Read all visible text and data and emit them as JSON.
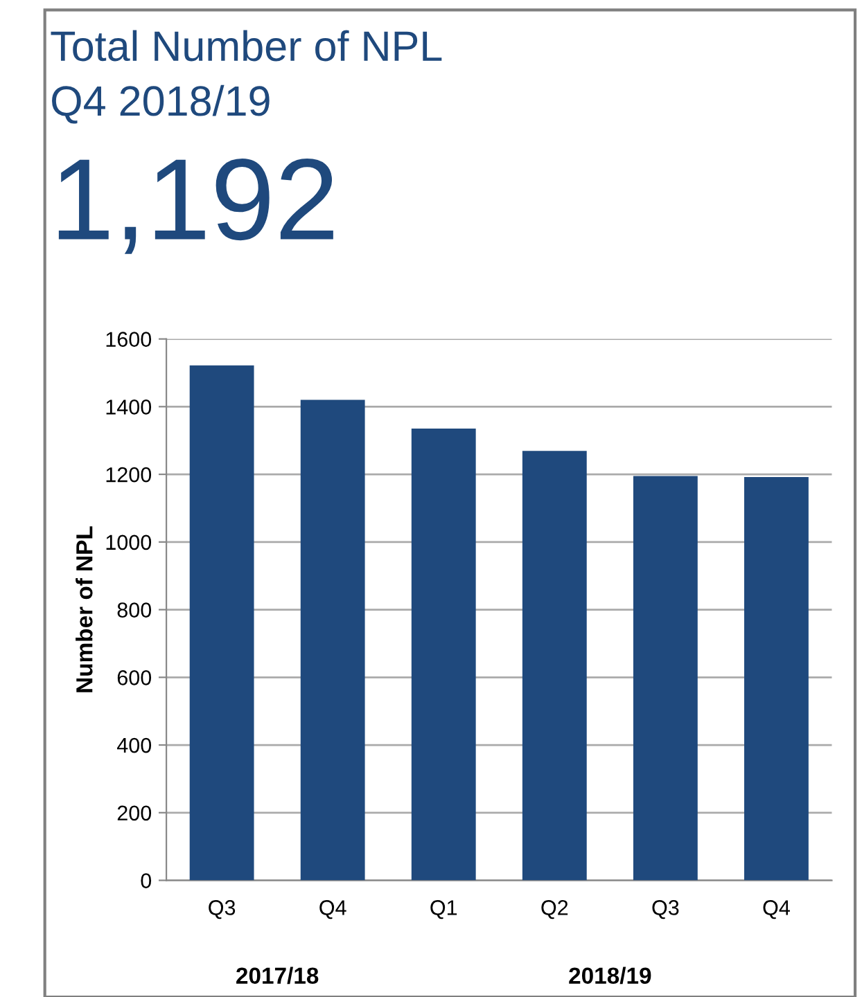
{
  "chart_data": {
    "type": "bar",
    "title": "Total Number of NPL",
    "subtitle": "Q4 2018/19",
    "annotations": [
      "1,192",
      "2017/18",
      "2018/19"
    ],
    "ylabel": "Number of NPL",
    "categories": [
      "Q3",
      "Q4",
      "Q1",
      "Q2",
      "Q3",
      "Q4"
    ],
    "values": [
      1522,
      1420,
      1335,
      1269,
      1195,
      1192
    ],
    "color": "#1f497d",
    "ylim": [
      0,
      1600
    ],
    "yticks": [
      0,
      200,
      400,
      600,
      800,
      1000,
      1200,
      1400,
      1600
    ],
    "grid": "y",
    "legend": false
  }
}
